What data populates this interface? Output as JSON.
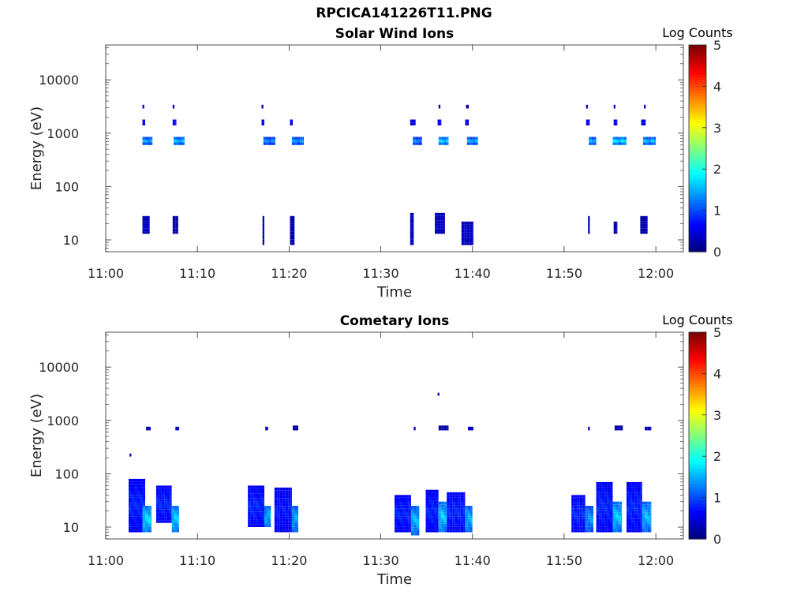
{
  "page": {
    "title": "RPCICA141226T11.PNG"
  },
  "chart_data": [
    {
      "type": "heatmap",
      "title": "Solar Wind Ions",
      "xlabel": "Time",
      "ylabel": "Energy (eV)",
      "x_ticks": [
        "11:00",
        "11:10",
        "11:20",
        "11:30",
        "11:40",
        "11:50",
        "12:00"
      ],
      "y_ticks": [
        "10",
        "100",
        "1000",
        "10000"
      ],
      "y_scale": "log",
      "ylim": [
        6,
        45000
      ],
      "xlim_minutes": [
        0,
        63
      ],
      "colorbar": {
        "label": "Log Counts",
        "ticks": [
          "0",
          "1",
          "2",
          "3",
          "4",
          "5"
        ],
        "range": [
          0,
          5
        ],
        "colormap": "jet"
      },
      "features": [
        {
          "t_start": 4.0,
          "t_end": 5.1,
          "e_low": 600,
          "e_high": 850,
          "log_counts": 1.6
        },
        {
          "t_start": 4.0,
          "t_end": 4.3,
          "e_low": 1400,
          "e_high": 1800,
          "log_counts": 0.9
        },
        {
          "t_start": 4.0,
          "t_end": 4.2,
          "e_low": 2900,
          "e_high": 3400,
          "log_counts": 0.4
        },
        {
          "t_start": 7.4,
          "t_end": 8.6,
          "e_low": 600,
          "e_high": 850,
          "log_counts": 1.7
        },
        {
          "t_start": 7.3,
          "t_end": 7.7,
          "e_low": 1400,
          "e_high": 1800,
          "log_counts": 0.9
        },
        {
          "t_start": 7.3,
          "t_end": 7.5,
          "e_low": 2900,
          "e_high": 3400,
          "log_counts": 0.4
        },
        {
          "t_start": 17.2,
          "t_end": 18.5,
          "e_low": 600,
          "e_high": 850,
          "log_counts": 1.4
        },
        {
          "t_start": 17.0,
          "t_end": 17.3,
          "e_low": 1400,
          "e_high": 1800,
          "log_counts": 0.8
        },
        {
          "t_start": 17.0,
          "t_end": 17.2,
          "e_low": 2900,
          "e_high": 3400,
          "log_counts": 0.3
        },
        {
          "t_start": 20.3,
          "t_end": 21.6,
          "e_low": 600,
          "e_high": 850,
          "log_counts": 1.5
        },
        {
          "t_start": 20.1,
          "t_end": 20.4,
          "e_low": 1400,
          "e_high": 1800,
          "log_counts": 0.8
        },
        {
          "t_start": 33.5,
          "t_end": 34.5,
          "e_low": 600,
          "e_high": 850,
          "log_counts": 1.4
        },
        {
          "t_start": 33.2,
          "t_end": 33.8,
          "e_low": 1400,
          "e_high": 1800,
          "log_counts": 0.7
        },
        {
          "t_start": 36.3,
          "t_end": 37.4,
          "e_low": 600,
          "e_high": 850,
          "log_counts": 1.8
        },
        {
          "t_start": 36.2,
          "t_end": 36.6,
          "e_low": 1400,
          "e_high": 1800,
          "log_counts": 0.8
        },
        {
          "t_start": 36.3,
          "t_end": 36.5,
          "e_low": 2900,
          "e_high": 3400,
          "log_counts": 0.3
        },
        {
          "t_start": 39.4,
          "t_end": 40.6,
          "e_low": 600,
          "e_high": 850,
          "log_counts": 1.6
        },
        {
          "t_start": 39.2,
          "t_end": 39.6,
          "e_low": 1400,
          "e_high": 1800,
          "log_counts": 0.8
        },
        {
          "t_start": 39.3,
          "t_end": 39.6,
          "e_low": 2900,
          "e_high": 3400,
          "log_counts": 0.3
        },
        {
          "t_start": 52.7,
          "t_end": 53.5,
          "e_low": 600,
          "e_high": 850,
          "log_counts": 1.6
        },
        {
          "t_start": 52.4,
          "t_end": 52.8,
          "e_low": 1400,
          "e_high": 1800,
          "log_counts": 0.8
        },
        {
          "t_start": 52.4,
          "t_end": 52.6,
          "e_low": 2900,
          "e_high": 3400,
          "log_counts": 0.3
        },
        {
          "t_start": 55.3,
          "t_end": 56.8,
          "e_low": 600,
          "e_high": 850,
          "log_counts": 1.9
        },
        {
          "t_start": 55.4,
          "t_end": 55.8,
          "e_low": 1400,
          "e_high": 1800,
          "log_counts": 0.8
        },
        {
          "t_start": 55.4,
          "t_end": 55.6,
          "e_low": 2900,
          "e_high": 3400,
          "log_counts": 0.3
        },
        {
          "t_start": 58.6,
          "t_end": 60.0,
          "e_low": 600,
          "e_high": 850,
          "log_counts": 1.7
        },
        {
          "t_start": 58.4,
          "t_end": 58.9,
          "e_low": 1400,
          "e_high": 1800,
          "log_counts": 0.7
        },
        {
          "t_start": 58.7,
          "t_end": 58.9,
          "e_low": 2900,
          "e_high": 3400,
          "log_counts": 0.3
        },
        {
          "t_start": 4.0,
          "t_end": 4.8,
          "e_low": 13,
          "e_high": 28,
          "log_counts": 0.4
        },
        {
          "t_start": 7.3,
          "t_end": 7.9,
          "e_low": 13,
          "e_high": 28,
          "log_counts": 0.3
        },
        {
          "t_start": 17.1,
          "t_end": 17.3,
          "e_low": 8,
          "e_high": 28,
          "log_counts": 0.3
        },
        {
          "t_start": 20.1,
          "t_end": 20.6,
          "e_low": 8,
          "e_high": 28,
          "log_counts": 0.3
        },
        {
          "t_start": 33.2,
          "t_end": 33.6,
          "e_low": 8,
          "e_high": 32,
          "log_counts": 0.4
        },
        {
          "t_start": 35.9,
          "t_end": 37.0,
          "e_low": 13,
          "e_high": 32,
          "log_counts": 0.4
        },
        {
          "t_start": 38.8,
          "t_end": 40.1,
          "e_low": 8,
          "e_high": 22,
          "log_counts": 0.4
        },
        {
          "t_start": 52.6,
          "t_end": 52.8,
          "e_low": 13,
          "e_high": 28,
          "log_counts": 0.3
        },
        {
          "t_start": 55.4,
          "t_end": 55.8,
          "e_low": 13,
          "e_high": 22,
          "log_counts": 0.3
        },
        {
          "t_start": 58.3,
          "t_end": 59.1,
          "e_low": 13,
          "e_high": 28,
          "log_counts": 0.3
        }
      ]
    },
    {
      "type": "heatmap",
      "title": "Cometary Ions",
      "xlabel": "Time",
      "ylabel": "Energy (eV)",
      "x_ticks": [
        "11:00",
        "11:10",
        "11:20",
        "11:30",
        "11:40",
        "11:50",
        "12:00"
      ],
      "y_ticks": [
        "10",
        "100",
        "1000",
        "10000"
      ],
      "y_scale": "log",
      "ylim": [
        6,
        45000
      ],
      "xlim_minutes": [
        0,
        63
      ],
      "colorbar": {
        "label": "Log Counts",
        "ticks": [
          "0",
          "1",
          "2",
          "3",
          "4",
          "5"
        ],
        "range": [
          0,
          5
        ],
        "colormap": "jet"
      },
      "features": [
        {
          "t_start": 2.5,
          "t_end": 4.3,
          "e_low": 8,
          "e_high": 80,
          "log_counts": 0.9
        },
        {
          "t_start": 4.0,
          "t_end": 5.0,
          "e_low": 8,
          "e_high": 25,
          "log_counts": 1.9
        },
        {
          "t_start": 5.5,
          "t_end": 7.2,
          "e_low": 12,
          "e_high": 60,
          "log_counts": 0.9
        },
        {
          "t_start": 7.2,
          "t_end": 8.0,
          "e_low": 8,
          "e_high": 25,
          "log_counts": 1.8
        },
        {
          "t_start": 15.5,
          "t_end": 17.3,
          "e_low": 10,
          "e_high": 60,
          "log_counts": 0.9
        },
        {
          "t_start": 17.3,
          "t_end": 18.0,
          "e_low": 10,
          "e_high": 25,
          "log_counts": 1.7
        },
        {
          "t_start": 18.4,
          "t_end": 20.3,
          "e_low": 8,
          "e_high": 55,
          "log_counts": 0.8
        },
        {
          "t_start": 20.3,
          "t_end": 21.0,
          "e_low": 8,
          "e_high": 25,
          "log_counts": 1.6
        },
        {
          "t_start": 31.5,
          "t_end": 33.3,
          "e_low": 8,
          "e_high": 40,
          "log_counts": 0.9
        },
        {
          "t_start": 33.3,
          "t_end": 34.2,
          "e_low": 7,
          "e_high": 25,
          "log_counts": 1.7
        },
        {
          "t_start": 34.9,
          "t_end": 36.3,
          "e_low": 8,
          "e_high": 50,
          "log_counts": 0.9
        },
        {
          "t_start": 36.3,
          "t_end": 37.2,
          "e_low": 8,
          "e_high": 30,
          "log_counts": 1.8
        },
        {
          "t_start": 37.2,
          "t_end": 39.2,
          "e_low": 8,
          "e_high": 45,
          "log_counts": 0.9
        },
        {
          "t_start": 39.2,
          "t_end": 40.0,
          "e_low": 8,
          "e_high": 25,
          "log_counts": 1.7
        },
        {
          "t_start": 50.8,
          "t_end": 52.3,
          "e_low": 8,
          "e_high": 40,
          "log_counts": 0.9
        },
        {
          "t_start": 52.3,
          "t_end": 53.2,
          "e_low": 8,
          "e_high": 25,
          "log_counts": 1.5
        },
        {
          "t_start": 53.5,
          "t_end": 55.3,
          "e_low": 8,
          "e_high": 70,
          "log_counts": 0.9
        },
        {
          "t_start": 55.3,
          "t_end": 56.3,
          "e_low": 8,
          "e_high": 30,
          "log_counts": 1.8
        },
        {
          "t_start": 56.8,
          "t_end": 58.5,
          "e_low": 8,
          "e_high": 70,
          "log_counts": 0.9
        },
        {
          "t_start": 58.5,
          "t_end": 59.5,
          "e_low": 8,
          "e_high": 30,
          "log_counts": 1.7
        },
        {
          "t_start": 4.4,
          "t_end": 4.9,
          "e_low": 650,
          "e_high": 760,
          "log_counts": 0.3
        },
        {
          "t_start": 7.6,
          "t_end": 8.0,
          "e_low": 650,
          "e_high": 760,
          "log_counts": 0.3
        },
        {
          "t_start": 17.4,
          "t_end": 17.7,
          "e_low": 650,
          "e_high": 760,
          "log_counts": 0.3
        },
        {
          "t_start": 20.4,
          "t_end": 21.0,
          "e_low": 650,
          "e_high": 800,
          "log_counts": 0.3
        },
        {
          "t_start": 33.6,
          "t_end": 33.8,
          "e_low": 650,
          "e_high": 760,
          "log_counts": 0.3
        },
        {
          "t_start": 36.3,
          "t_end": 37.4,
          "e_low": 650,
          "e_high": 800,
          "log_counts": 0.3
        },
        {
          "t_start": 39.5,
          "t_end": 40.1,
          "e_low": 650,
          "e_high": 760,
          "log_counts": 0.3
        },
        {
          "t_start": 52.6,
          "t_end": 52.8,
          "e_low": 650,
          "e_high": 760,
          "log_counts": 0.3
        },
        {
          "t_start": 55.5,
          "t_end": 56.4,
          "e_low": 650,
          "e_high": 800,
          "log_counts": 0.3
        },
        {
          "t_start": 58.8,
          "t_end": 59.5,
          "e_low": 650,
          "e_high": 760,
          "log_counts": 0.3
        },
        {
          "t_start": 36.2,
          "t_end": 36.4,
          "e_low": 2900,
          "e_high": 3300,
          "log_counts": 0.3
        },
        {
          "t_start": 2.6,
          "t_end": 2.8,
          "e_low": 210,
          "e_high": 240,
          "log_counts": 0.3
        }
      ]
    }
  ]
}
